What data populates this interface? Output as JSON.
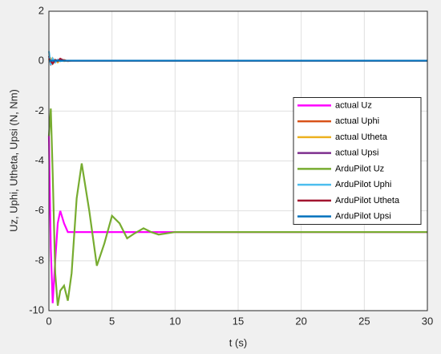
{
  "chart_data": {
    "type": "line",
    "x_label": "t (s)",
    "y_label": "Uz, Uphi, Utheta, Upsi (N, Nm)",
    "x": [
      0,
      0.15,
      0.3,
      0.5,
      0.7,
      0.9,
      1.2,
      1.5,
      1.8,
      2.2,
      2.6,
      3.2,
      3.8,
      4.4,
      5,
      5.6,
      6.2,
      6.8,
      7.5,
      8.1,
      8.7,
      10,
      15,
      20,
      25,
      30
    ],
    "series": [
      {
        "name": "actual Uz",
        "color": "#ff00ff",
        "values": [
          -3,
          -7.5,
          -9.7,
          -8,
          -6.5,
          -6,
          -6.5,
          -6.85,
          -6.85,
          -6.85,
          -6.85,
          -6.85,
          -6.85,
          -6.85,
          -6.85,
          -6.85,
          -6.85,
          -6.85,
          -6.85,
          -6.85,
          -6.85,
          -6.85,
          -6.85,
          -6.85,
          -6.85,
          -6.85
        ]
      },
      {
        "name": "actual Uphi",
        "color": "#d95319",
        "values": [
          0.1,
          -0.1,
          0.1,
          -0.05,
          0.05,
          0,
          0.05,
          0,
          0.02,
          0.02,
          0.02,
          0.02,
          0.02,
          0.02,
          0.02,
          0.02,
          0.02,
          0.02,
          0.02,
          0.02,
          0.02,
          0.02,
          0.02,
          0.02,
          0.02,
          0.02
        ]
      },
      {
        "name": "actual Utheta",
        "color": "#edb120",
        "values": [
          0,
          0.1,
          -0.1,
          0.05,
          -0.05,
          0.05,
          0,
          0.02,
          0.02,
          0.02,
          0.02,
          0.02,
          0.02,
          0.02,
          0.02,
          0.02,
          0.02,
          0.02,
          0.02,
          0.02,
          0.02,
          0.02,
          0.02,
          0.02,
          0.02,
          0.02
        ]
      },
      {
        "name": "actual Upsi",
        "color": "#7e2f8e",
        "values": [
          0.2,
          -0.1,
          0.05,
          0,
          0.05,
          0.02,
          0.02,
          0.02,
          0.02,
          0.02,
          0.02,
          0.02,
          0.02,
          0.02,
          0.02,
          0.02,
          0.02,
          0.02,
          0.02,
          0.02,
          0.02,
          0.02,
          0.02,
          0.02,
          0.02,
          0.02
        ]
      },
      {
        "name": "ArduPilot Uz",
        "color": "#77ac30",
        "values": [
          -3,
          -1.9,
          -4.5,
          -8.5,
          -9.8,
          -9.2,
          -9,
          -9.6,
          -8.5,
          -5.5,
          -4.1,
          -6,
          -8.2,
          -7.3,
          -6.2,
          -6.5,
          -7.1,
          -6.9,
          -6.7,
          -6.85,
          -6.95,
          -6.85,
          -6.85,
          -6.85,
          -6.85,
          -6.85
        ]
      },
      {
        "name": "ArduPilot Uphi",
        "color": "#4dbeee",
        "values": [
          0.4,
          -0.15,
          0.1,
          -0.05,
          0.05,
          0,
          0.02,
          0.02,
          0.02,
          0.02,
          0.02,
          0.02,
          0.02,
          0.02,
          0.02,
          0.02,
          0.02,
          0.02,
          0.02,
          0.02,
          0.02,
          0.02,
          0.02,
          0.02,
          0.02,
          0.02
        ]
      },
      {
        "name": "ArduPilot Utheta",
        "color": "#a2142f",
        "values": [
          0.1,
          0,
          -0.1,
          0.05,
          0,
          0.1,
          0.02,
          0.02,
          0.02,
          0.02,
          0.02,
          0.02,
          0.02,
          0.02,
          0.02,
          0.02,
          0.02,
          0.02,
          0.02,
          0.02,
          0.02,
          0.02,
          0.02,
          0.02,
          0.02,
          0.02
        ]
      },
      {
        "name": "ArduPilot Upsi",
        "color": "#0072bd",
        "values": [
          0.02,
          0.02,
          0.02,
          0.02,
          0.02,
          0.02,
          0.02,
          0.02,
          0.02,
          0.02,
          0.02,
          0.02,
          0.02,
          0.02,
          0.02,
          0.02,
          0.02,
          0.02,
          0.02,
          0.02,
          0.02,
          0.02,
          0.02,
          0.02,
          0.02,
          0.02
        ]
      }
    ],
    "xlim": [
      0,
      30
    ],
    "xticks": [
      0,
      5,
      10,
      15,
      20,
      25,
      30
    ],
    "ylim": [
      -10,
      2
    ],
    "yticks": [
      -10,
      -8,
      -6,
      -4,
      -2,
      0,
      2
    ],
    "grid": true,
    "legend": "east"
  }
}
